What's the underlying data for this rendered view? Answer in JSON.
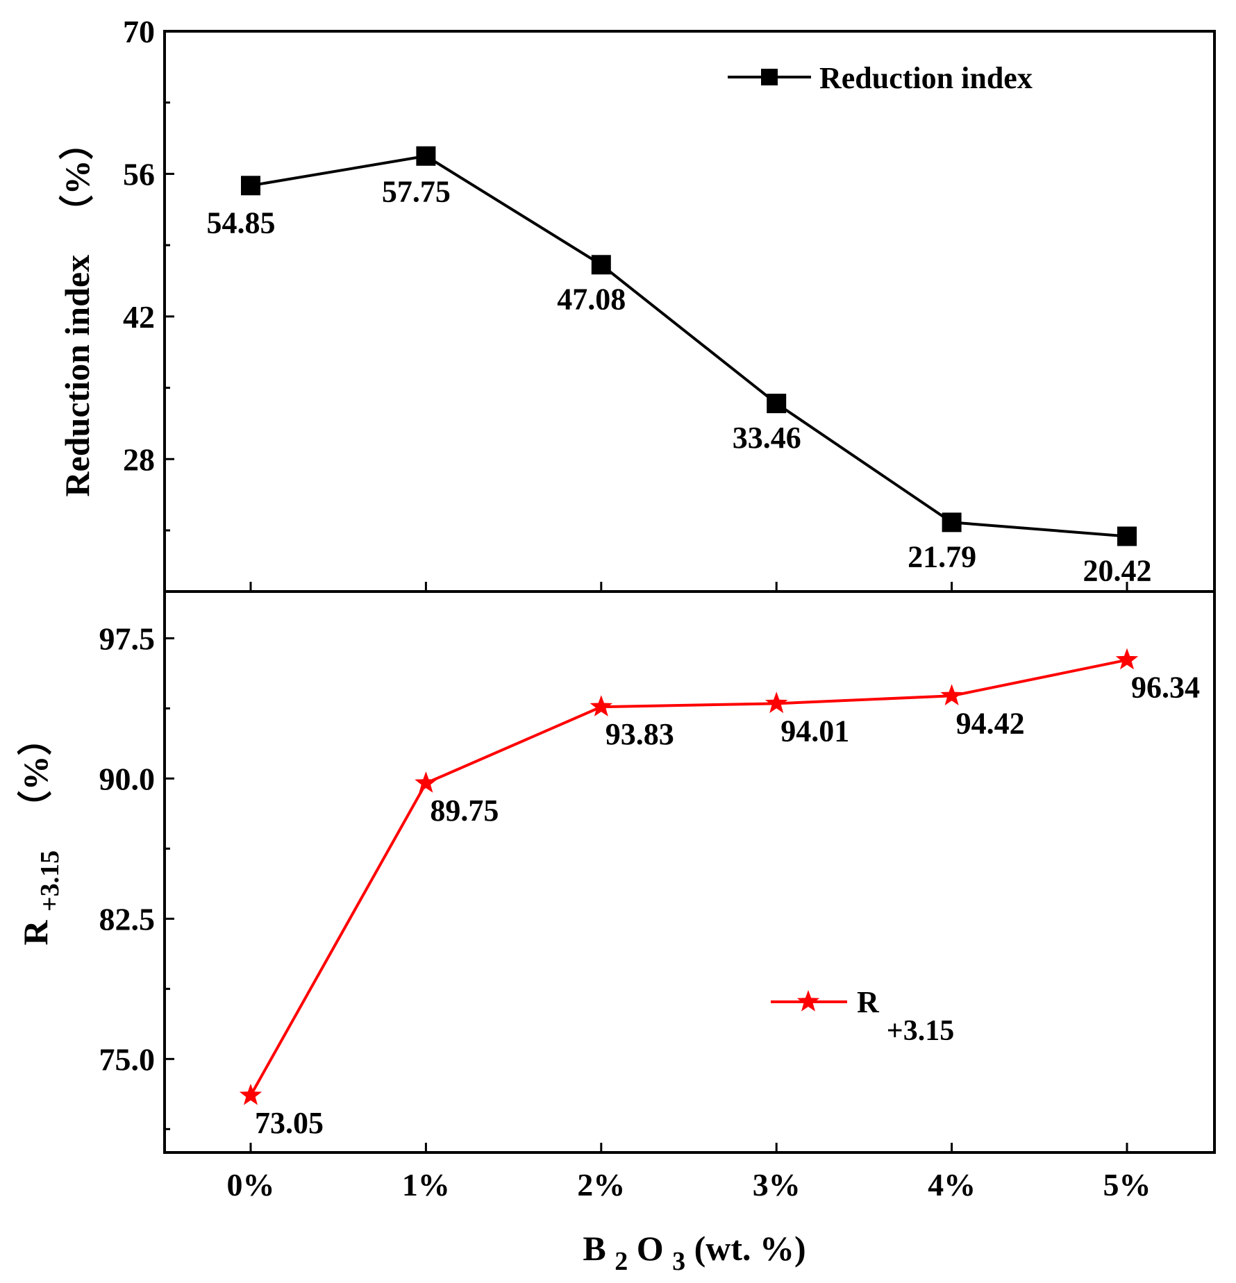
{
  "chart_data": [
    {
      "type": "line",
      "panel": "top",
      "categories": [
        "0%",
        "1%",
        "2%",
        "3%",
        "4%",
        "5%"
      ],
      "series": [
        {
          "name": "Reduction index",
          "values": [
            54.85,
            57.75,
            47.08,
            33.46,
            21.79,
            20.42
          ],
          "labels": [
            "54.85",
            "57.75",
            "47.08",
            "33.46",
            "21.79",
            "20.42"
          ],
          "color": "#000000",
          "marker": "square"
        }
      ],
      "ylabel": "Reduction index （%）",
      "ylabel_main": "Reduction index",
      "ylabel_unit": "（%）",
      "ylim": [
        15,
        70
      ],
      "yticks": [
        28,
        42,
        56,
        70
      ],
      "ytick_labels": [
        "28",
        "42",
        "56",
        "70"
      ],
      "legend": {
        "position": "top-right",
        "label": "Reduction index"
      }
    },
    {
      "type": "line",
      "panel": "bottom",
      "categories": [
        "0%",
        "1%",
        "2%",
        "3%",
        "4%",
        "5%"
      ],
      "series": [
        {
          "name": "R+3.15",
          "values": [
            73.05,
            89.75,
            93.83,
            94.01,
            94.42,
            96.34
          ],
          "labels": [
            "73.05",
            "89.75",
            "93.83",
            "94.01",
            "94.42",
            "96.34"
          ],
          "color": "#ff0000",
          "marker": "star"
        }
      ],
      "ylabel": "R+3.15 （%）",
      "ylabel_main": "R",
      "ylabel_sub": "+3.15",
      "ylabel_unit": "（%）",
      "ylim": [
        70,
        100
      ],
      "yticks": [
        75,
        82.5,
        90,
        97.5
      ],
      "ytick_labels": [
        "75.0",
        "82.5",
        "90.0",
        "97.5"
      ],
      "legend": {
        "position": "bottom-right",
        "label_main": "R",
        "label_sub": "+3.15"
      }
    }
  ],
  "x_axis": {
    "title_main": "B",
    "title_sub1": "2",
    "title_mid": "O",
    "title_sub2": "3",
    "title_rest": " (wt. %)",
    "tick_labels": [
      "0%",
      "1%",
      "2%",
      "3%",
      "4%",
      "5%"
    ]
  }
}
